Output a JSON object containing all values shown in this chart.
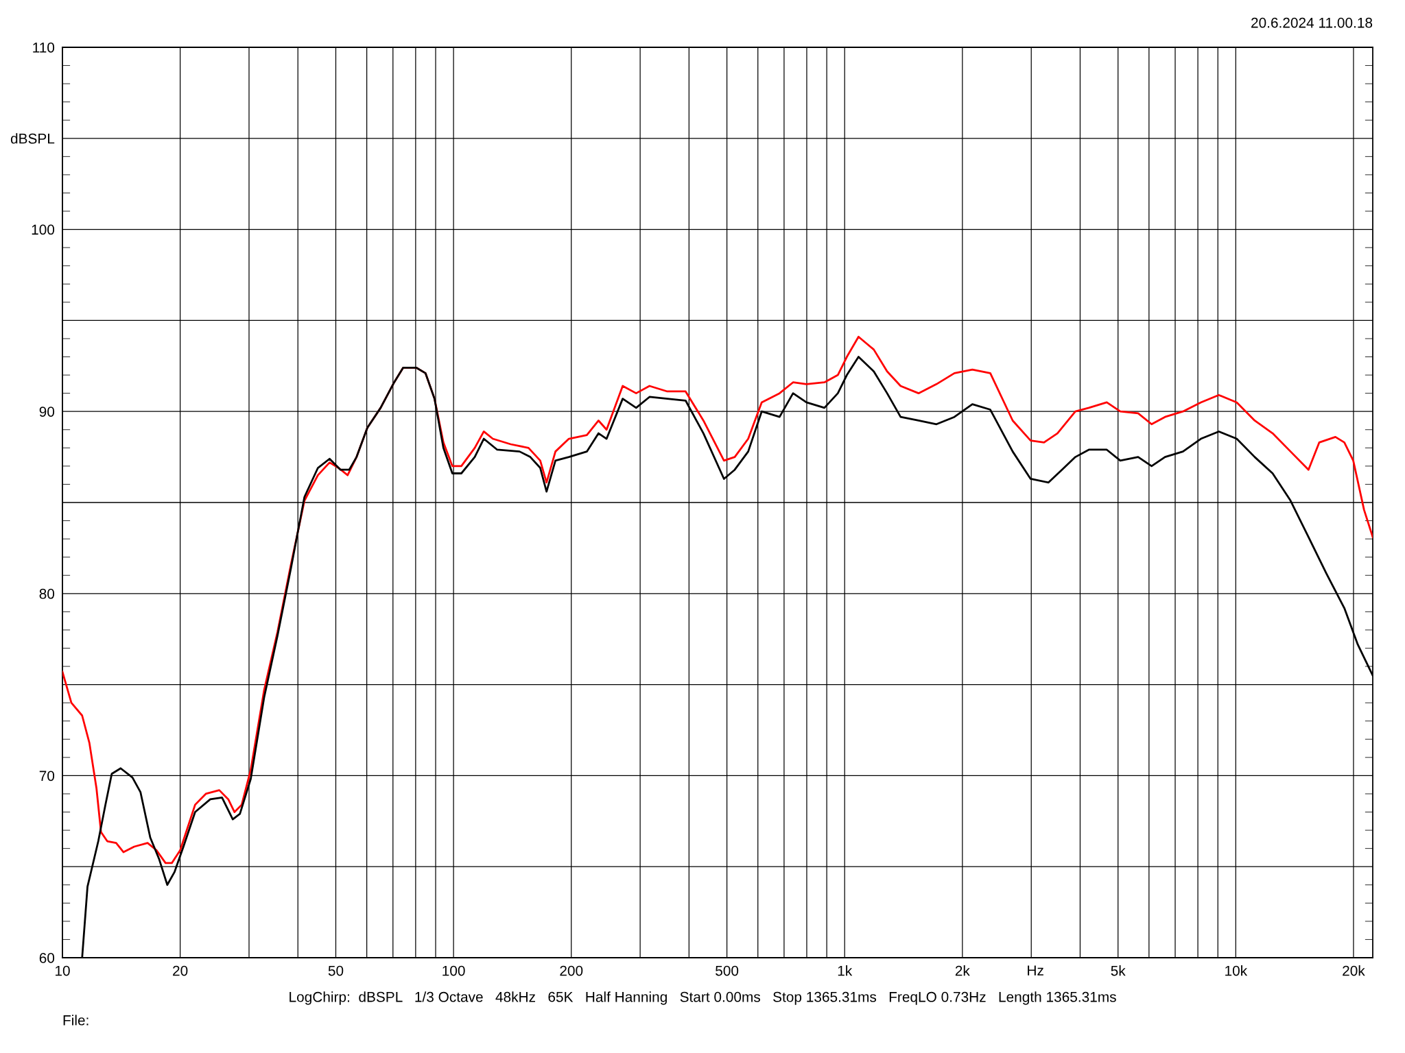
{
  "chart_data": {
    "type": "line",
    "xlabel": "Hz",
    "log": "x",
    "grid": true,
    "legend": false,
    "xlim": [
      10,
      22400
    ],
    "ylim": [
      60,
      110
    ],
    "xticks": [
      10,
      20,
      {
        "value": 30,
        "label": null
      },
      {
        "value": 40,
        "label": null
      },
      50,
      {
        "value": 60,
        "label": null
      },
      {
        "value": 70,
        "label": null
      },
      {
        "value": 80,
        "label": null
      },
      {
        "value": 90,
        "label": null
      },
      100,
      200,
      {
        "value": 300,
        "label": null
      },
      {
        "value": 400,
        "label": null
      },
      500,
      {
        "value": 600,
        "label": null
      },
      {
        "value": 700,
        "label": null
      },
      {
        "value": 800,
        "label": null
      },
      {
        "value": 900,
        "label": null
      },
      {
        "value": 1000,
        "label": "1k"
      },
      {
        "value": 2000,
        "label": "2k"
      },
      {
        "value": 3000,
        "label": null
      },
      {
        "value": 4000,
        "label": null
      },
      {
        "value": 5000,
        "label": "5k"
      },
      {
        "value": 6000,
        "label": null
      },
      {
        "value": 7000,
        "label": null
      },
      {
        "value": 8000,
        "label": null
      },
      {
        "value": 9000,
        "label": null
      },
      {
        "value": 10000,
        "label": "10k"
      },
      {
        "value": 20000,
        "label": "20k"
      }
    ],
    "yticks": [
      60,
      {
        "value": 65,
        "label": null
      },
      70,
      {
        "value": 75,
        "label": null
      },
      80,
      {
        "value": 85,
        "label": null
      },
      90,
      {
        "value": 95,
        "label": null
      },
      100,
      {
        "value": 105,
        "label": "dBSPL"
      },
      110
    ],
    "annotations": [
      "20.6.2024 11.00.18",
      "LogChirp:  dBSPL   1/3 Octave   48kHz   65K   Half Hanning   Start 0.00ms   Stop 1365.31ms   FreqLO 0.73Hz   Length 1365.31ms",
      "File:"
    ],
    "series": [
      {
        "color": "#ff0000",
        "x": [
          10,
          10.54,
          11.23,
          11.72,
          12.22,
          12.55,
          13.02,
          13.72,
          14.32,
          15.26,
          16.51,
          17.4,
          18.35,
          19.04,
          20,
          21.84,
          23.26,
          25.18,
          26.55,
          27.54,
          28.73,
          30.29,
          32.79,
          35.48,
          38.4,
          41.57,
          45,
          48.2,
          50.8,
          53.6,
          56.5,
          60.2,
          65.1,
          70.5,
          74.3,
          80.4,
          84.8,
          89.4,
          94.2,
          99.3,
          104.7,
          113.3,
          119.5,
          126,
          140,
          155.5,
          166.6,
          172.9,
          182.2,
          197.2,
          219.2,
          234.8,
          246.2,
          270.7,
          293,
          317,
          352,
          392,
          435.4,
          491.4,
          523.6,
          566.8,
          613.6,
          681.7,
          738,
          798.5,
          887.7,
          960.7,
          1013,
          1085,
          1187,
          1284,
          1390,
          1545,
          1717,
          1908,
          2121,
          2357,
          2689,
          2988,
          3234,
          3500,
          3890,
          4211,
          4679,
          5066,
          5628,
          6093,
          6594,
          7328,
          8144,
          9051,
          10058,
          11178,
          12423,
          13805,
          15344,
          16350,
          17980,
          18950,
          19970,
          21280,
          22400
        ],
        "values": [
          75.7,
          74.0,
          73.3,
          71.8,
          69.3,
          66.9,
          66.4,
          66.3,
          65.8,
          66.1,
          66.3,
          65.9,
          65.2,
          65.2,
          65.9,
          68.4,
          69.0,
          69.2,
          68.7,
          68.0,
          68.4,
          70.3,
          74.7,
          77.9,
          81.6,
          85.1,
          86.5,
          87.2,
          86.9,
          86.5,
          87.5,
          89.1,
          90.2,
          91.6,
          92.4,
          92.4,
          92.1,
          90.7,
          88.3,
          87.0,
          87.0,
          88.0,
          88.9,
          88.5,
          88.2,
          88.0,
          87.3,
          86.1,
          87.8,
          88.5,
          88.7,
          89.5,
          89.0,
          91.4,
          91.0,
          91.4,
          91.1,
          91.1,
          89.5,
          87.3,
          87.5,
          88.5,
          90.5,
          91.0,
          91.6,
          91.5,
          91.6,
          92.0,
          93.0,
          94.1,
          93.4,
          92.2,
          91.4,
          91.0,
          91.5,
          92.1,
          92.3,
          92.1,
          89.5,
          88.4,
          88.3,
          88.8,
          90.0,
          90.2,
          90.5,
          90.0,
          89.9,
          89.3,
          89.7,
          90.0,
          90.5,
          90.9,
          90.5,
          89.5,
          88.8,
          87.8,
          86.8,
          88.3,
          88.6,
          88.3,
          87.3,
          84.6,
          83.1
        ]
      },
      {
        "color": "#000000",
        "x": [
          11.23,
          11.59,
          12.35,
          12.88,
          13.37,
          14.09,
          15.1,
          15.83,
          16.77,
          17.68,
          18.54,
          19.34,
          20.39,
          21.84,
          23.88,
          25.59,
          27.26,
          28.43,
          30.29,
          32.79,
          35.48,
          38.4,
          41.57,
          45,
          48.2,
          51.4,
          54.1,
          56.5,
          60.2,
          65.1,
          70.5,
          74.3,
          80.4,
          84.8,
          89.4,
          94.2,
          99.3,
          104.7,
          113.3,
          119.5,
          129.3,
          147.5,
          157.1,
          166.6,
          172.9,
          182.2,
          197.2,
          219.2,
          234.8,
          246.2,
          270.7,
          293,
          317,
          352,
          392,
          435.4,
          491.4,
          523.6,
          566.8,
          613.6,
          681.7,
          738,
          798.5,
          887.7,
          960.7,
          1013,
          1085,
          1187,
          1284,
          1390,
          1545,
          1717,
          1908,
          2121,
          2357,
          2689,
          2988,
          3320,
          3594,
          3890,
          4211,
          4679,
          5066,
          5628,
          6093,
          6594,
          7328,
          8144,
          9051,
          10058,
          11178,
          12423,
          13805,
          15344,
          17050,
          18950,
          20510,
          22400
        ],
        "values": [
          60.0,
          63.9,
          66.4,
          68.4,
          70.1,
          70.4,
          69.9,
          69.1,
          66.6,
          65.4,
          64.0,
          64.7,
          66.1,
          68.0,
          68.7,
          68.8,
          67.6,
          67.9,
          69.8,
          74.3,
          77.7,
          81.4,
          85.3,
          86.9,
          87.4,
          86.8,
          86.8,
          87.5,
          89.1,
          90.2,
          91.6,
          92.4,
          92.4,
          92.1,
          90.7,
          88.0,
          86.6,
          86.6,
          87.5,
          88.5,
          87.9,
          87.8,
          87.5,
          86.9,
          85.6,
          87.3,
          87.5,
          87.8,
          88.8,
          88.5,
          90.7,
          90.2,
          90.8,
          90.7,
          90.6,
          88.8,
          86.3,
          86.8,
          87.8,
          90.0,
          89.7,
          91.0,
          90.5,
          90.2,
          91.0,
          92.0,
          93.0,
          92.2,
          91.0,
          89.7,
          89.5,
          89.3,
          89.7,
          90.4,
          90.1,
          87.8,
          86.3,
          86.1,
          86.8,
          87.5,
          87.9,
          87.9,
          87.3,
          87.5,
          87.0,
          87.5,
          87.8,
          88.5,
          88.9,
          88.5,
          87.5,
          86.6,
          85.1,
          83.1,
          81.1,
          79.2,
          77.2,
          75.5
        ]
      }
    ]
  }
}
